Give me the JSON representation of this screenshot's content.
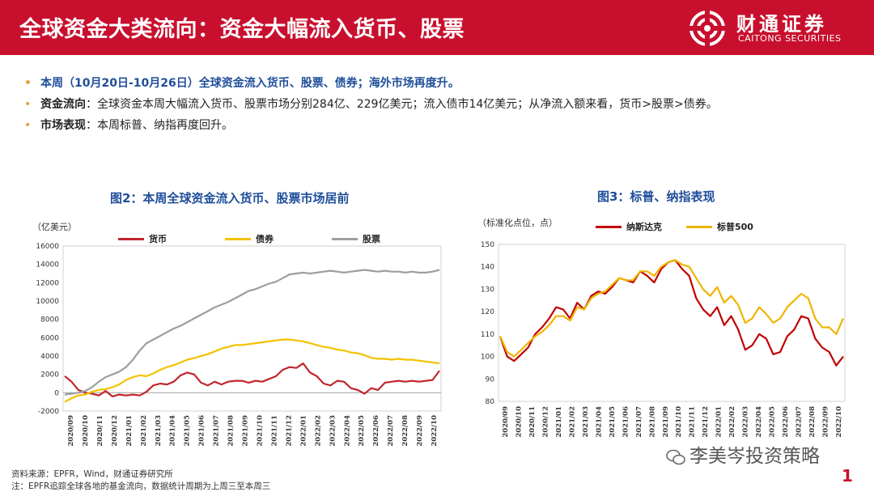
{
  "header": {
    "title": "全球资金大类流向：资金大幅流入货币、股票",
    "brand_cn": "财通证券",
    "brand_en": "CAITONG SECURITIES",
    "bg_color": "#c8102e"
  },
  "bullets": [
    {
      "label": "",
      "text": "本周（10月20日-10月26日）全球资金流入货币、股票、债券；海外市场再度升。"
    },
    {
      "label": "资金流向",
      "text": "：全球资金本周大幅流入货币、股票市场分别284亿、229亿美元；流入债市14亿美元；从净流入额来看，货币>股票>债券。"
    },
    {
      "label": "市场表现",
      "text": "：本周标普、纳指再度回升。"
    }
  ],
  "chart_data": [
    {
      "type": "line",
      "title": "图2：本周全球资金流入货币、股票市场居前",
      "unit": "（亿美元）",
      "ylim": [
        -2000,
        16000
      ],
      "yticks": [
        -2000,
        0,
        2000,
        4000,
        6000,
        8000,
        10000,
        12000,
        14000,
        16000
      ],
      "xlabels": [
        "2020/09",
        "2020/10",
        "2020/11",
        "2020/12",
        "2021/01",
        "2021/02",
        "2021/03",
        "2021/04",
        "2021/05",
        "2021/06",
        "2021/07",
        "2021/08",
        "2021/09",
        "2021/10",
        "2021/11",
        "2021/12",
        "2022/01",
        "2022/02",
        "2022/03",
        "2022/04",
        "2022/05",
        "2022/06",
        "2022/07",
        "2022/08",
        "2022/09",
        "2022/10"
      ],
      "series": [
        {
          "name": "货币",
          "color": "#c0262d",
          "values": [
            1800,
            1200,
            300,
            0,
            -100,
            -300,
            200,
            -400,
            -200,
            -300,
            -200,
            -300,
            100,
            800,
            1000,
            900,
            1200,
            1900,
            2200,
            2000,
            1100,
            800,
            1200,
            900,
            1200,
            1300,
            1300,
            1100,
            1300,
            1200,
            1500,
            1800,
            2500,
            2800,
            2700,
            3200,
            2200,
            1800,
            1000,
            800,
            1300,
            1200,
            500,
            300,
            -100,
            500,
            300,
            1100,
            1200,
            1300,
            1200,
            1300,
            1200,
            1300,
            1400,
            2400
          ]
        },
        {
          "name": "债券",
          "color": "#f2c200",
          "values": [
            -1000,
            -600,
            -300,
            -200,
            100,
            300,
            400,
            600,
            900,
            1400,
            1700,
            1900,
            1800,
            2100,
            2500,
            2800,
            3000,
            3300,
            3600,
            3800,
            4000,
            4200,
            4500,
            4800,
            5000,
            5200,
            5200,
            5300,
            5400,
            5500,
            5600,
            5700,
            5800,
            5800,
            5700,
            5600,
            5400,
            5200,
            5000,
            4900,
            4700,
            4600,
            4400,
            4300,
            4100,
            3800,
            3700,
            3700,
            3600,
            3700,
            3600,
            3600,
            3500,
            3400,
            3300,
            3200
          ]
        },
        {
          "name": "股票",
          "color": "#9e9e9e",
          "values": [
            -200,
            -100,
            0,
            200,
            600,
            1200,
            1700,
            2000,
            2300,
            2800,
            3600,
            4600,
            5400,
            5800,
            6200,
            6600,
            7000,
            7300,
            7700,
            8100,
            8500,
            8900,
            9300,
            9600,
            9900,
            10300,
            10700,
            11100,
            11300,
            11600,
            11900,
            12100,
            12500,
            12900,
            13000,
            13100,
            13000,
            13100,
            13200,
            13300,
            13200,
            13100,
            13200,
            13300,
            13400,
            13300,
            13200,
            13300,
            13200,
            13200,
            13100,
            13200,
            13100,
            13100,
            13200,
            13400
          ]
        }
      ]
    },
    {
      "type": "line",
      "title": "图3：标普、纳指表现",
      "unit": "（标准化点位，点）",
      "ylim": [
        80,
        150
      ],
      "yticks": [
        80,
        90,
        100,
        110,
        120,
        130,
        140,
        150
      ],
      "xlabels": [
        "2020/09",
        "2020/10",
        "2020/11",
        "2020/12",
        "2021/01",
        "2021/02",
        "2021/03",
        "2021/04",
        "2021/05",
        "2021/06",
        "2021/07",
        "2021/08",
        "2021/09",
        "2021/10",
        "2021/11",
        "2021/12",
        "2022/01",
        "2022/02",
        "2022/03",
        "2022/04",
        "2022/05",
        "2022/06",
        "2022/07",
        "2022/08",
        "2022/09",
        "2022/10"
      ],
      "series": [
        {
          "name": "纳斯达克",
          "color": "#c00000",
          "values": [
            109,
            100,
            98,
            101,
            104,
            110,
            113,
            117,
            122,
            121,
            117,
            124,
            121,
            127,
            129,
            128,
            131,
            135,
            134,
            133,
            138,
            136,
            133,
            139,
            142,
            143,
            139,
            136,
            126,
            121,
            118,
            122,
            114,
            118,
            112,
            103,
            105,
            110,
            108,
            101,
            102,
            109,
            112,
            118,
            117,
            108,
            104,
            102,
            96,
            100
          ]
        },
        {
          "name": "标普500",
          "color": "#f0b400",
          "values": [
            109,
            102,
            100,
            103,
            106,
            109,
            111,
            114,
            118,
            118,
            116,
            122,
            121,
            126,
            128,
            129,
            132,
            135,
            134,
            134,
            138,
            138,
            136,
            140,
            142,
            143,
            141,
            140,
            135,
            130,
            127,
            131,
            124,
            127,
            123,
            115,
            117,
            122,
            119,
            115,
            117,
            122,
            125,
            128,
            126,
            117,
            113,
            113,
            110,
            117
          ]
        }
      ]
    }
  ],
  "footer": {
    "source": "资料来源：EPFR，Wind，财通证券研究所",
    "note": "注：EPFR追踪全球各地的基金流向，数据统计周期为上周三至本周三"
  },
  "watermark": "李美岑投资策略",
  "page_number": "1"
}
